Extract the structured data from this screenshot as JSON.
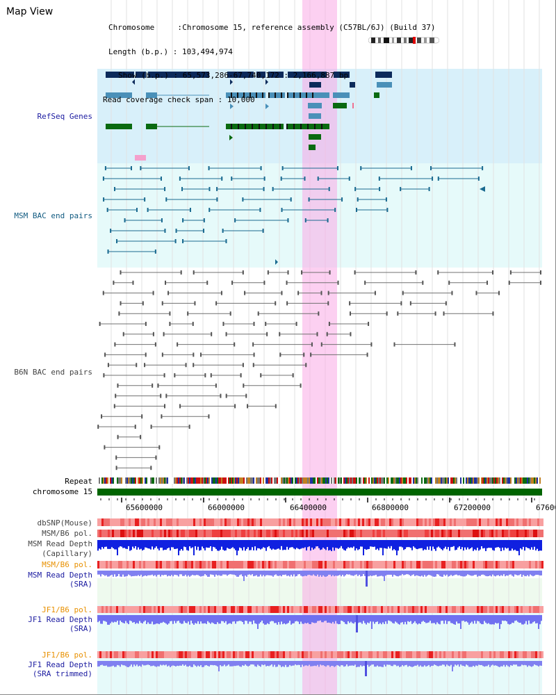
{
  "page": {
    "title": "Map View"
  },
  "header": {
    "chromosome_label": "Chromosome",
    "chromosome_value": "Chromosome 15, reference assembly (C57BL/6J) (Build 37)",
    "length_label": "Length (b.p.)",
    "length_value": "103,494,974",
    "show_label": "Show (b.p.)",
    "show_value": "65,573,286-67,740,172 : 2,166,887 bp",
    "coverage_label": "Read coverage check span",
    "coverage_value": "10,000"
  },
  "tracks": {
    "refseq": "RefSeq Genes",
    "msm_bac": "MSM BAC end pairs",
    "b6n_bac": "B6N BAC end pairs",
    "repeat": "Repeat",
    "chromosome": "chromosome 15",
    "dbsnp": "dbSNP(Mouse)",
    "msm_b6_pol_1": "MSM/B6 pol.",
    "msm_read_depth_cap_1": "MSM Read Depth",
    "msm_read_depth_cap_2": "(Capillary)",
    "msm_b6_pol_2": "MSM/B6 pol.",
    "msm_read_depth_sra_1": "MSM Read Depth",
    "msm_read_depth_sra_2": "(SRA)",
    "jf1_b6_pol_1": "JF1/B6 pol.",
    "jf1_read_depth_1": "JF1 Read Depth",
    "jf1_read_depth_2": "(SRA)",
    "jf1_b6_pol_2": "JF1/B6 pol.",
    "jf1_trim_1": "JF1 Read Depth",
    "jf1_trim_2": "(SRA trimmed)"
  },
  "axis": {
    "ticks": [
      "65600000",
      "66000000",
      "66400000",
      "66800000",
      "67200000",
      "67600000"
    ]
  },
  "colors": {
    "refseq_bg": "#d8f0fa",
    "msm_bg": "#e6fafa",
    "highlight": "#f8c8ec",
    "label_blue": "#1a1aa0",
    "label_teal": "#105a80",
    "label_orange": "#e89000",
    "label_gray": "#444444",
    "chromosome_bar": "#006400"
  }
}
